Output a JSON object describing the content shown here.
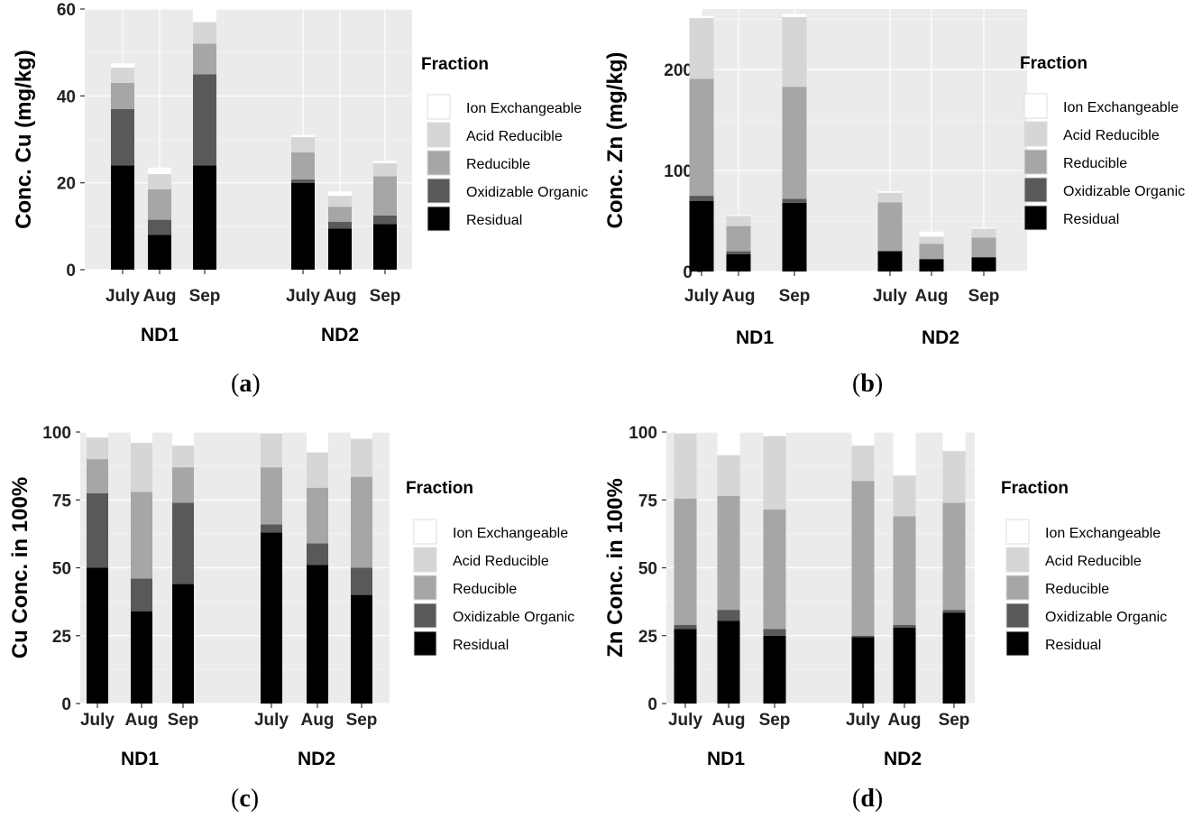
{
  "legend": {
    "title": "Fraction",
    "entries": [
      {
        "name": "Ion Exchangeable",
        "color": "#ffffff"
      },
      {
        "name": "Acid Reducible",
        "color": "#d6d6d6"
      },
      {
        "name": "Reducible",
        "color": "#a6a6a6"
      },
      {
        "name": "Oxidizable Organic",
        "color": "#595959"
      },
      {
        "name": "Residual",
        "color": "#000000"
      }
    ]
  },
  "chart_data": [
    {
      "id": "a",
      "caption": "a",
      "type": "bar",
      "stacked": true,
      "ylabel": "Conc. Cu (mg/kg)",
      "ylim": [
        0,
        60
      ],
      "yticks": [
        0,
        20,
        40,
        60
      ],
      "groups": [
        "ND1",
        "ND2"
      ],
      "categories": [
        "July",
        "Aug",
        "Sep",
        "July",
        "Aug",
        "Sep"
      ],
      "series": [
        {
          "name": "Residual",
          "values": [
            24,
            8,
            24,
            20,
            9.5,
            10.5
          ]
        },
        {
          "name": "Oxidizable Organic",
          "values": [
            13,
            3.5,
            21,
            0.8,
            1.5,
            2
          ]
        },
        {
          "name": "Reducible",
          "values": [
            6,
            7,
            7,
            6.2,
            3.5,
            9
          ]
        },
        {
          "name": "Acid Reducible",
          "values": [
            3.5,
            3.5,
            5,
            3.5,
            2.5,
            3
          ]
        },
        {
          "name": "Ion Exchangeable",
          "values": [
            1,
            1.5,
            3.5,
            0.5,
            1,
            0.5
          ]
        }
      ]
    },
    {
      "id": "b",
      "caption": "b",
      "type": "bar",
      "stacked": true,
      "ylabel": "Conc. Zn (mg/kg)",
      "ylim": [
        0,
        260
      ],
      "yticks": [
        0,
        100,
        200
      ],
      "groups": [
        "ND1",
        "ND2"
      ],
      "categories": [
        "July",
        "Aug",
        "Sep",
        "July",
        "Aug",
        "Sep"
      ],
      "series": [
        {
          "name": "Residual",
          "values": [
            70,
            17,
            68,
            20,
            12,
            14
          ]
        },
        {
          "name": "Oxidizable Organic",
          "values": [
            5,
            3,
            4,
            0.5,
            0.5,
            0.5
          ]
        },
        {
          "name": "Reducible",
          "values": [
            116,
            25,
            111,
            48,
            15,
            19
          ]
        },
        {
          "name": "Acid Reducible",
          "values": [
            60,
            10,
            69,
            9.5,
            7,
            9
          ]
        },
        {
          "name": "Ion Exchangeable",
          "values": [
            2,
            1,
            3,
            1.5,
            5,
            1
          ]
        }
      ]
    },
    {
      "id": "c",
      "caption": "c",
      "type": "bar",
      "stacked": true,
      "ylabel": "Cu Conc. in 100%",
      "ylim": [
        0,
        100
      ],
      "yticks": [
        0,
        25,
        50,
        75,
        100
      ],
      "groups": [
        "ND1",
        "ND2"
      ],
      "categories": [
        "July",
        "Aug",
        "Sep",
        "July",
        "Aug",
        "Sep"
      ],
      "series": [
        {
          "name": "Residual",
          "values": [
            50,
            34,
            44,
            63,
            51,
            40
          ]
        },
        {
          "name": "Oxidizable Organic",
          "values": [
            27.5,
            12,
            30,
            3,
            8,
            10
          ]
        },
        {
          "name": "Reducible",
          "values": [
            12.5,
            32,
            13,
            21,
            20.5,
            33.5
          ]
        },
        {
          "name": "Acid Reducible",
          "values": [
            8,
            18,
            8,
            12.5,
            13,
            14
          ]
        },
        {
          "name": "Ion Exchangeable",
          "values": [
            2,
            4,
            5,
            0.5,
            7.5,
            2.5
          ]
        }
      ]
    },
    {
      "id": "d",
      "caption": "d",
      "type": "bar",
      "stacked": true,
      "ylabel": "Zn Conc. in 100%",
      "ylim": [
        0,
        100
      ],
      "yticks": [
        0,
        25,
        50,
        75,
        100
      ],
      "groups": [
        "ND1",
        "ND2"
      ],
      "categories": [
        "July",
        "Aug",
        "Sep",
        "July",
        "Aug",
        "Sep"
      ],
      "series": [
        {
          "name": "Residual",
          "values": [
            27.5,
            30.5,
            25,
            24.5,
            28,
            33.5
          ]
        },
        {
          "name": "Oxidizable Organic",
          "values": [
            1.5,
            4,
            2.5,
            0.5,
            1,
            1
          ]
        },
        {
          "name": "Reducible",
          "values": [
            46.5,
            42,
            44,
            57,
            40,
            39.5
          ]
        },
        {
          "name": "Acid Reducible",
          "values": [
            24,
            15,
            27,
            13,
            15,
            19
          ]
        },
        {
          "name": "Ion Exchangeable",
          "values": [
            0.5,
            8.5,
            1.5,
            5,
            16,
            7
          ]
        }
      ]
    }
  ]
}
